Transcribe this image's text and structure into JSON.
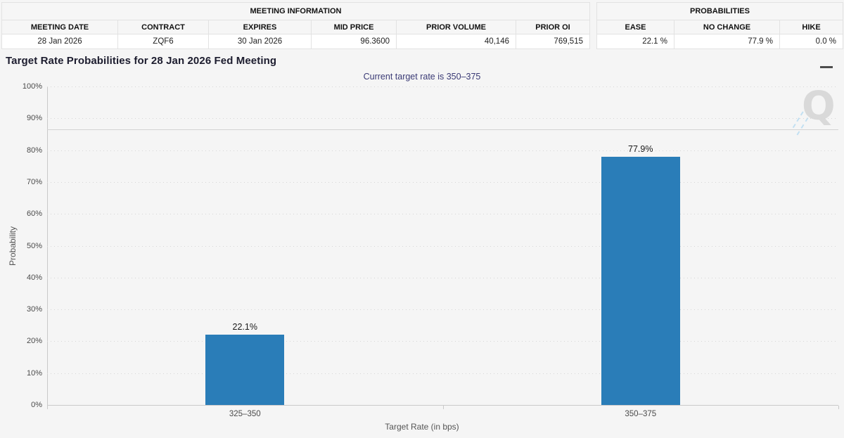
{
  "meeting_information": {
    "group_title": "MEETING INFORMATION",
    "columns": [
      "MEETING DATE",
      "CONTRACT",
      "EXPIRES",
      "MID PRICE",
      "PRIOR VOLUME",
      "PRIOR OI"
    ],
    "values": [
      "28 Jan 2026",
      "ZQF6",
      "30 Jan 2026",
      "96.3600",
      "40,146",
      "769,515"
    ]
  },
  "probabilities": {
    "group_title": "PROBABILITIES",
    "columns": [
      "EASE",
      "NO CHANGE",
      "HIKE"
    ],
    "values": [
      "22.1 %",
      "77.9 %",
      "0.0 %"
    ]
  },
  "chart": {
    "title": "Target Rate Probabilities for 28 Jan 2026 Fed Meeting",
    "subtitle": "Current target rate is 350–375",
    "menu_icon": "hamburger-icon",
    "watermark_letter": "Q"
  },
  "chart_data": {
    "type": "bar",
    "title": "Target Rate Probabilities for 28 Jan 2026 Fed Meeting",
    "subtitle": "Current target rate is 350–375",
    "categories": [
      "325–350",
      "350–375"
    ],
    "values": [
      22.1,
      77.9
    ],
    "data_labels": [
      "22.1%",
      "77.9%"
    ],
    "xlabel": "Target Rate (in bps)",
    "ylabel": "Probability",
    "ylim": [
      0,
      100
    ],
    "ytick_step": 10,
    "ytick_suffix": "%",
    "reference_line_y": 86.6,
    "grid": "dotted",
    "legend": "none",
    "bar_color": "#2a7db8"
  }
}
